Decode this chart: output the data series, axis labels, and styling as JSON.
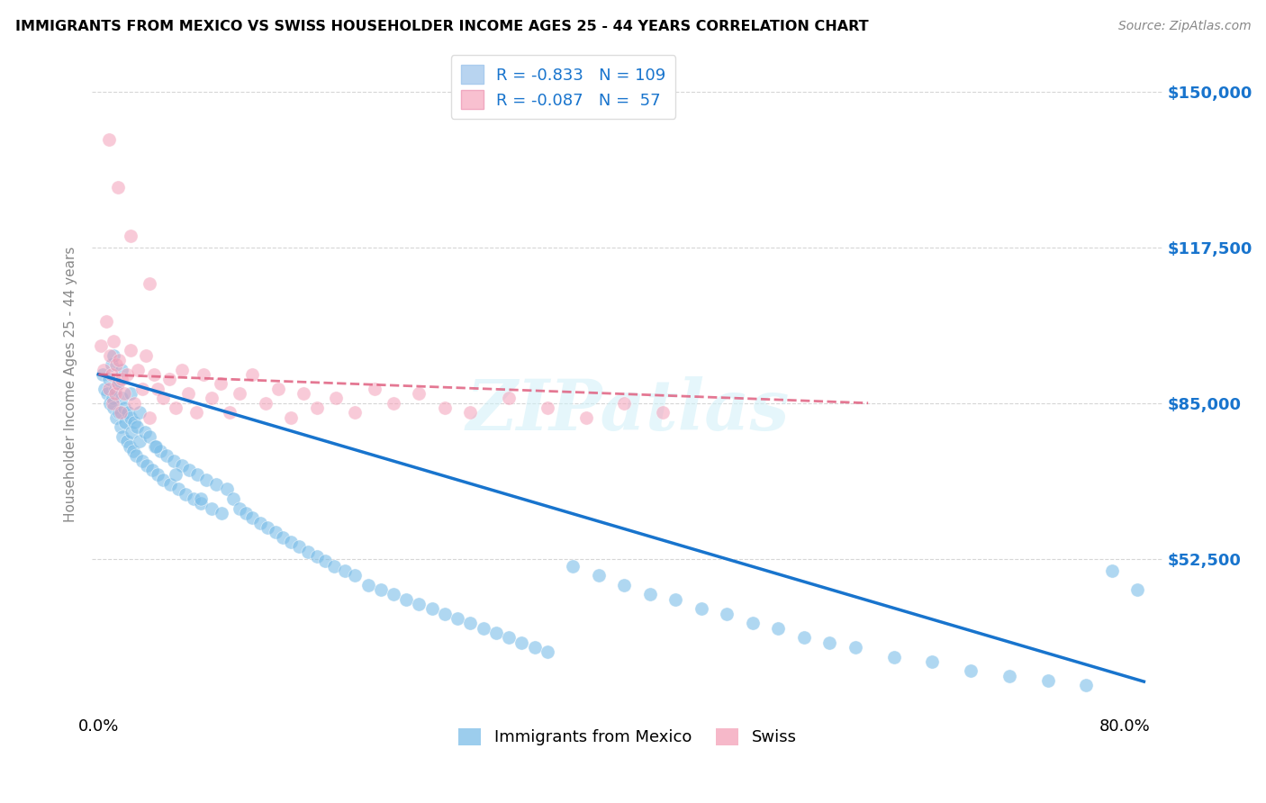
{
  "title": "IMMIGRANTS FROM MEXICO VS SWISS HOUSEHOLDER INCOME AGES 25 - 44 YEARS CORRELATION CHART",
  "source": "Source: ZipAtlas.com",
  "ylabel": "Householder Income Ages 25 - 44 years",
  "ytick_labels": [
    "$52,500",
    "$85,000",
    "$117,500",
    "$150,000"
  ],
  "ytick_values": [
    52500,
    85000,
    117500,
    150000
  ],
  "ymin": 20000,
  "ymax": 158000,
  "xmin": -0.005,
  "xmax": 0.83,
  "watermark": "ZIPatlas",
  "legend_bottom": [
    "Immigrants from Mexico",
    "Swiss"
  ],
  "blue_color": "#7bbde8",
  "pink_color": "#f4a0b8",
  "line_blue": "#1874CD",
  "line_pink": "#e06080",
  "grid_color": "#cccccc",
  "background_color": "#ffffff",
  "r_blue": -0.833,
  "n_blue": 109,
  "r_pink": -0.087,
  "n_pink": 57,
  "mexico_x": [
    0.003,
    0.005,
    0.007,
    0.008,
    0.009,
    0.01,
    0.011,
    0.012,
    0.013,
    0.014,
    0.015,
    0.016,
    0.017,
    0.018,
    0.019,
    0.02,
    0.021,
    0.022,
    0.023,
    0.024,
    0.025,
    0.026,
    0.027,
    0.028,
    0.029,
    0.03,
    0.032,
    0.034,
    0.036,
    0.038,
    0.04,
    0.042,
    0.044,
    0.046,
    0.048,
    0.05,
    0.053,
    0.056,
    0.059,
    0.062,
    0.065,
    0.068,
    0.071,
    0.074,
    0.077,
    0.08,
    0.084,
    0.088,
    0.092,
    0.096,
    0.1,
    0.105,
    0.11,
    0.115,
    0.12,
    0.126,
    0.132,
    0.138,
    0.144,
    0.15,
    0.156,
    0.163,
    0.17,
    0.177,
    0.184,
    0.192,
    0.2,
    0.21,
    0.22,
    0.23,
    0.24,
    0.25,
    0.26,
    0.27,
    0.28,
    0.29,
    0.3,
    0.31,
    0.32,
    0.33,
    0.34,
    0.35,
    0.37,
    0.39,
    0.41,
    0.43,
    0.45,
    0.47,
    0.49,
    0.51,
    0.53,
    0.55,
    0.57,
    0.59,
    0.62,
    0.65,
    0.68,
    0.71,
    0.74,
    0.77,
    0.79,
    0.81,
    0.012,
    0.018,
    0.025,
    0.032,
    0.045,
    0.06,
    0.08
  ],
  "mexico_y": [
    91000,
    88000,
    87000,
    90000,
    85000,
    93000,
    86000,
    84000,
    88000,
    82000,
    89000,
    83000,
    80000,
    86000,
    78000,
    84000,
    81000,
    77000,
    83000,
    76000,
    82000,
    79000,
    75000,
    81000,
    74000,
    80000,
    77000,
    73000,
    79000,
    72000,
    78000,
    71000,
    76000,
    70000,
    75000,
    69000,
    74000,
    68000,
    73000,
    67000,
    72000,
    66000,
    71000,
    65000,
    70000,
    64000,
    69000,
    63000,
    68000,
    62000,
    67000,
    65000,
    63000,
    62000,
    61000,
    60000,
    59000,
    58000,
    57000,
    56000,
    55000,
    54000,
    53000,
    52000,
    51000,
    50000,
    49000,
    47000,
    46000,
    45000,
    44000,
    43000,
    42000,
    41000,
    40000,
    39000,
    38000,
    37000,
    36000,
    35000,
    34000,
    33000,
    51000,
    49000,
    47000,
    45000,
    44000,
    42000,
    41000,
    39000,
    38000,
    36000,
    35000,
    34000,
    32000,
    31000,
    29000,
    28000,
    27000,
    26000,
    50000,
    46000,
    95000,
    92000,
    87000,
    83000,
    76000,
    70000,
    65000
  ],
  "swiss_x": [
    0.002,
    0.004,
    0.006,
    0.008,
    0.009,
    0.01,
    0.011,
    0.012,
    0.013,
    0.014,
    0.015,
    0.016,
    0.017,
    0.018,
    0.02,
    0.022,
    0.025,
    0.028,
    0.031,
    0.034,
    0.037,
    0.04,
    0.043,
    0.046,
    0.05,
    0.055,
    0.06,
    0.065,
    0.07,
    0.076,
    0.082,
    0.088,
    0.095,
    0.102,
    0.11,
    0.12,
    0.13,
    0.14,
    0.15,
    0.16,
    0.17,
    0.185,
    0.2,
    0.215,
    0.23,
    0.25,
    0.27,
    0.29,
    0.32,
    0.35,
    0.38,
    0.41,
    0.44,
    0.008,
    0.015,
    0.025,
    0.04
  ],
  "swiss_y": [
    97000,
    92000,
    102000,
    88000,
    95000,
    91000,
    85000,
    98000,
    87000,
    93000,
    89000,
    94000,
    83000,
    90000,
    87000,
    91000,
    96000,
    85000,
    92000,
    88000,
    95000,
    82000,
    91000,
    88000,
    86000,
    90000,
    84000,
    92000,
    87000,
    83000,
    91000,
    86000,
    89000,
    83000,
    87000,
    91000,
    85000,
    88000,
    82000,
    87000,
    84000,
    86000,
    83000,
    88000,
    85000,
    87000,
    84000,
    83000,
    86000,
    84000,
    82000,
    85000,
    83000,
    140000,
    130000,
    120000,
    110000
  ]
}
